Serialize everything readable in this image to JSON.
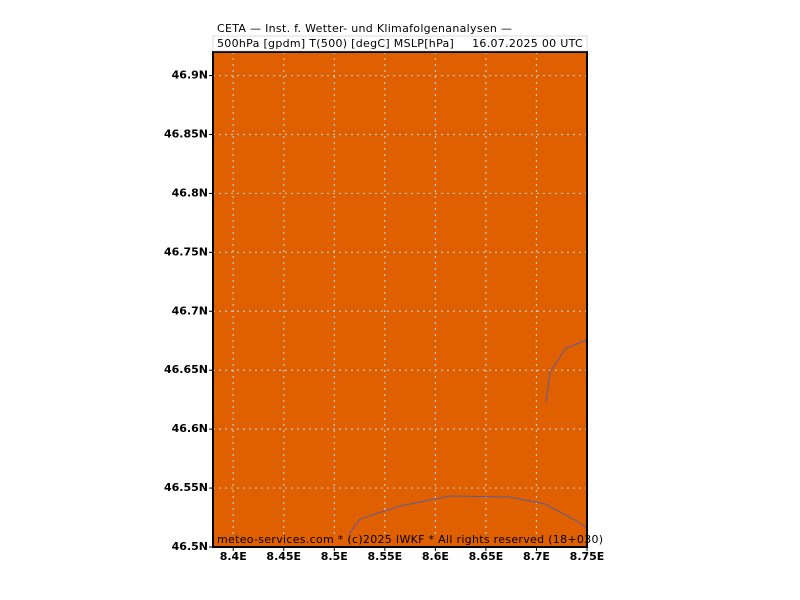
{
  "header": {
    "line1": "CETA — Inst. f. Wetter- und Klimafolgenanalysen —",
    "line2": "500hPa [gpdm] T(500) [degC] MSLP[hPa]",
    "date": "16.07.2025 00 UTC"
  },
  "map": {
    "fill_color": "#e06000",
    "xlim": [
      8.38,
      8.75
    ],
    "ylim": [
      46.5,
      46.92
    ],
    "xticks": [
      {
        "value": 8.4,
        "label": "8.4E"
      },
      {
        "value": 8.45,
        "label": "8.45E"
      },
      {
        "value": 8.5,
        "label": "8.5E"
      },
      {
        "value": 8.55,
        "label": "8.55E"
      },
      {
        "value": 8.6,
        "label": "8.6E"
      },
      {
        "value": 8.65,
        "label": "8.65E"
      },
      {
        "value": 8.7,
        "label": "8.7E"
      },
      {
        "value": 8.75,
        "label": "8.75E"
      }
    ],
    "yticks": [
      {
        "value": 46.5,
        "label": "46.5N"
      },
      {
        "value": 46.55,
        "label": "46.55N"
      },
      {
        "value": 46.6,
        "label": "46.6N"
      },
      {
        "value": 46.65,
        "label": "46.65N"
      },
      {
        "value": 46.7,
        "label": "46.7N"
      },
      {
        "value": 46.75,
        "label": "46.75N"
      },
      {
        "value": 46.8,
        "label": "46.8N"
      },
      {
        "value": 46.85,
        "label": "46.85N"
      },
      {
        "value": 46.9,
        "label": "46.9N"
      }
    ],
    "grid": true
  },
  "footer": "meteo-services.com * (c)2025 IWKF * All rights reserved (18+030)"
}
